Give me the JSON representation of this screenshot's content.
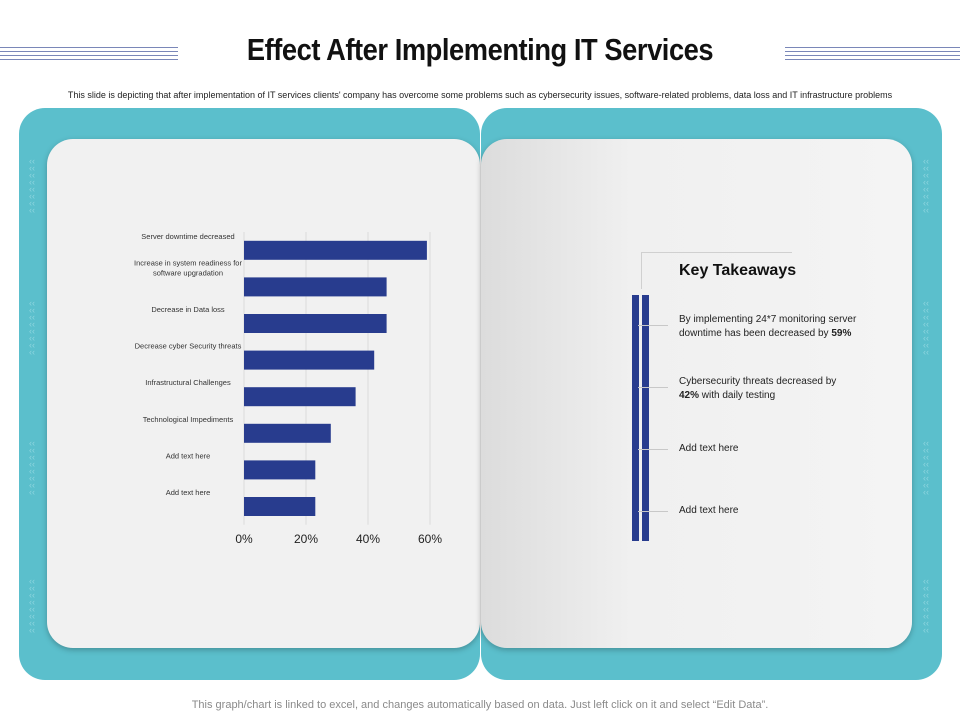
{
  "header": {
    "title": "Effect After Implementing IT Services",
    "subtitle": "This slide is depicting that after implementation of IT services clients' company has overcome some problems such as cybersecurity issues, software-related problems, data loss and IT infrastructure problems"
  },
  "chart_data": {
    "type": "bar",
    "orientation": "horizontal",
    "title": "",
    "xlabel": "",
    "ylabel": "",
    "categories": [
      "Server downtime decreased",
      "Increase in system readiness for software upgradation",
      "Decrease in Data loss",
      "Decrease cyber Security threats",
      "Infrastructural Challenges",
      "Technological Impediments",
      "Add text here",
      "Add text here"
    ],
    "values": [
      59,
      46,
      46,
      42,
      36,
      28,
      23,
      23
    ],
    "xlim": [
      0,
      60
    ],
    "xticks": [
      "0%",
      "20%",
      "40%",
      "60%"
    ],
    "bar_color": "#283c8e",
    "grid": true
  },
  "takeaways": {
    "title": "Key Takeaways",
    "items": [
      {
        "text": "By implementing 24*7 monitoring server downtime has been decreased by ",
        "bold": "59%"
      },
      {
        "text_pre": "Cybersecurity threats decreased by ",
        "bold": "42%",
        "text_post": " with daily testing"
      },
      {
        "text": "Add text here"
      },
      {
        "text": "Add text here"
      }
    ]
  },
  "footer": {
    "note": "This graph/chart is linked to excel, and changes automatically based on data. Just left click on it and select “Edit Data”."
  }
}
